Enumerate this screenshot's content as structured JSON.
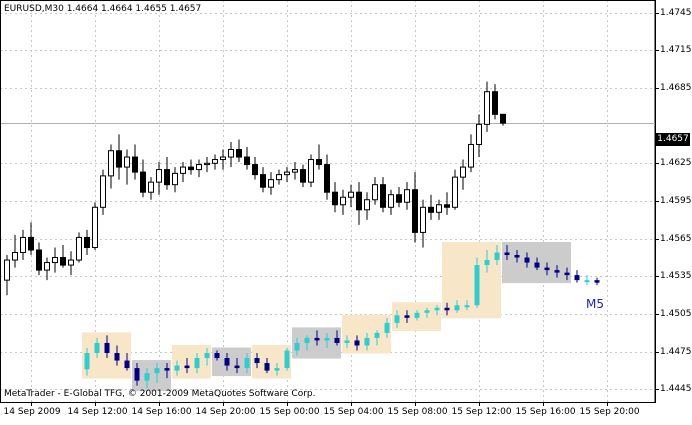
{
  "header": {
    "symbol_info": "EURUSD,M30  1.4664 1.4664 1.4655 1.4657"
  },
  "footer": {
    "copyright": "MetaTrader - E-Global TFG, © 2001-2009 MetaQuotes Software Corp."
  },
  "overlay": {
    "m5_label": "M5"
  },
  "price_axis": {
    "current_price": "1.4657",
    "ticks": [
      {
        "label": "1.4745",
        "value": 1.4745
      },
      {
        "label": "1.4715",
        "value": 1.4715
      },
      {
        "label": "1.4685",
        "value": 1.4685
      },
      {
        "label": "1.4625",
        "value": 1.4625
      },
      {
        "label": "1.4595",
        "value": 1.4595
      },
      {
        "label": "1.4565",
        "value": 1.4565
      },
      {
        "label": "1.4535",
        "value": 1.4535
      },
      {
        "label": "1.4505",
        "value": 1.4505
      },
      {
        "label": "1.4475",
        "value": 1.4475
      },
      {
        "label": "1.4445",
        "value": 1.4445
      }
    ]
  },
  "time_axis": {
    "ticks": [
      "14 Sep 2009",
      "14 Sep 12:00",
      "14 Sep 16:00",
      "14 Sep 20:00",
      "15 Sep 00:00",
      "15 Sep 04:00",
      "15 Sep 08:00",
      "15 Sep 12:00",
      "15 Sep 16:00",
      "15 Sep 20:00"
    ]
  },
  "colors": {
    "bull_body": "#ffffff",
    "bear_body": "#000000",
    "grid": "#c8c8c8",
    "m5_bull": "#33cccc",
    "m5_bear": "#000080",
    "zone_up": "#f8e6c8",
    "zone_down": "#cccccc",
    "current_line": "#b0b0b0"
  },
  "chart_data": {
    "type": "candlestick",
    "main_series": [
      [
        1.4532,
        1.4552,
        1.452,
        1.4548
      ],
      [
        1.4548,
        1.4568,
        1.4542,
        1.4554
      ],
      [
        1.4554,
        1.4572,
        1.4548,
        1.4566
      ],
      [
        1.4566,
        1.4578,
        1.4552,
        1.4556
      ],
      [
        1.4556,
        1.4562,
        1.4536,
        1.454
      ],
      [
        1.454,
        1.455,
        1.4532,
        1.4546
      ],
      [
        1.4546,
        1.4558,
        1.4538,
        1.455
      ],
      [
        1.455,
        1.456,
        1.4542,
        1.4544
      ],
      [
        1.4544,
        1.4555,
        1.4536,
        1.4548
      ],
      [
        1.4548,
        1.457,
        1.4546,
        1.4566
      ],
      [
        1.4566,
        1.4572,
        1.4552,
        1.4558
      ],
      [
        1.4558,
        1.4594,
        1.4556,
        1.459
      ],
      [
        1.459,
        1.462,
        1.4584,
        1.4615
      ],
      [
        1.4615,
        1.464,
        1.4605,
        1.4635
      ],
      [
        1.4635,
        1.4648,
        1.4612,
        1.4622
      ],
      [
        1.4622,
        1.4636,
        1.4608,
        1.463
      ],
      [
        1.463,
        1.464,
        1.4612,
        1.4618
      ],
      [
        1.4618,
        1.4628,
        1.4598,
        1.4602
      ],
      [
        1.4602,
        1.4614,
        1.4596,
        1.461
      ],
      [
        1.461,
        1.4626,
        1.46,
        1.462
      ],
      [
        1.462,
        1.463,
        1.4604,
        1.4608
      ],
      [
        1.4608,
        1.4622,
        1.4602,
        1.4617
      ],
      [
        1.4617,
        1.4626,
        1.461,
        1.4622
      ],
      [
        1.4622,
        1.4628,
        1.4616,
        1.462
      ],
      [
        1.462,
        1.4628,
        1.4614,
        1.4624
      ],
      [
        1.4624,
        1.463,
        1.4618,
        1.4625
      ],
      [
        1.4625,
        1.4632,
        1.462,
        1.4628
      ],
      [
        1.4628,
        1.4636,
        1.462,
        1.463
      ],
      [
        1.463,
        1.4642,
        1.4622,
        1.4636
      ],
      [
        1.4636,
        1.4644,
        1.4626,
        1.463
      ],
      [
        1.463,
        1.4638,
        1.462,
        1.4624
      ],
      [
        1.4624,
        1.463,
        1.4612,
        1.4616
      ],
      [
        1.4616,
        1.4622,
        1.4602,
        1.4606
      ],
      [
        1.4606,
        1.4618,
        1.46,
        1.4612
      ],
      [
        1.4612,
        1.462,
        1.4608,
        1.4616
      ],
      [
        1.4616,
        1.4622,
        1.461,
        1.4618
      ],
      [
        1.4618,
        1.4626,
        1.4612,
        1.462
      ],
      [
        1.462,
        1.4624,
        1.4606,
        1.461
      ],
      [
        1.461,
        1.4632,
        1.4606,
        1.4628
      ],
      [
        1.4628,
        1.464,
        1.462,
        1.4624
      ],
      [
        1.4624,
        1.4632,
        1.4596,
        1.4602
      ],
      [
        1.4602,
        1.461,
        1.4586,
        1.4592
      ],
      [
        1.4592,
        1.4604,
        1.4584,
        1.4598
      ],
      [
        1.4598,
        1.4608,
        1.459,
        1.4602
      ],
      [
        1.4602,
        1.461,
        1.4576,
        1.4588
      ],
      [
        1.4588,
        1.4602,
        1.458,
        1.4596
      ],
      [
        1.4596,
        1.4614,
        1.4592,
        1.4608
      ],
      [
        1.4608,
        1.4614,
        1.4586,
        1.459
      ],
      [
        1.459,
        1.4604,
        1.4584,
        1.46
      ],
      [
        1.46,
        1.4606,
        1.459,
        1.4594
      ],
      [
        1.4594,
        1.461,
        1.4588,
        1.4604
      ],
      [
        1.4604,
        1.4618,
        1.4562,
        1.457
      ],
      [
        1.457,
        1.4596,
        1.4558,
        1.459
      ],
      [
        1.459,
        1.46,
        1.458,
        1.4586
      ],
      [
        1.4586,
        1.4596,
        1.458,
        1.4592
      ],
      [
        1.4592,
        1.4602,
        1.4584,
        1.459
      ],
      [
        1.459,
        1.462,
        1.4588,
        1.4614
      ],
      [
        1.4614,
        1.4628,
        1.4604,
        1.4622
      ],
      [
        1.4622,
        1.4648,
        1.4618,
        1.464
      ],
      [
        1.464,
        1.4664,
        1.463,
        1.4656
      ],
      [
        1.4656,
        1.469,
        1.465,
        1.4682
      ],
      [
        1.4682,
        1.4688,
        1.466,
        1.4664
      ],
      [
        1.4664,
        1.4664,
        1.4655,
        1.4657
      ]
    ],
    "m5_series": [
      [
        1.4461,
        1.4478,
        1.4456,
        1.4474
      ],
      [
        1.4474,
        1.4486,
        1.447,
        1.4482
      ],
      [
        1.4482,
        1.4488,
        1.447,
        1.4474
      ],
      [
        1.4474,
        1.448,
        1.4464,
        1.4468
      ],
      [
        1.4468,
        1.4474,
        1.446,
        1.4462
      ],
      [
        1.4462,
        1.4466,
        1.4448,
        1.4452
      ],
      [
        1.4452,
        1.4462,
        1.4446,
        1.4458
      ],
      [
        1.4458,
        1.4466,
        1.445,
        1.4462
      ],
      [
        1.4462,
        1.4466,
        1.4454,
        1.446
      ],
      [
        1.446,
        1.4468,
        1.4456,
        1.4464
      ],
      [
        1.4464,
        1.447,
        1.4458,
        1.4462
      ],
      [
        1.4462,
        1.4474,
        1.4458,
        1.447
      ],
      [
        1.447,
        1.4478,
        1.4464,
        1.4474
      ],
      [
        1.4474,
        1.4476,
        1.4468,
        1.447
      ],
      [
        1.447,
        1.4474,
        1.446,
        1.4464
      ],
      [
        1.4464,
        1.447,
        1.4458,
        1.4462
      ],
      [
        1.4462,
        1.4474,
        1.4458,
        1.447
      ],
      [
        1.447,
        1.4474,
        1.4462,
        1.4466
      ],
      [
        1.4466,
        1.447,
        1.4458,
        1.446
      ],
      [
        1.446,
        1.4466,
        1.4456,
        1.4462
      ],
      [
        1.4462,
        1.4478,
        1.446,
        1.4476
      ],
      [
        1.4476,
        1.4486,
        1.4472,
        1.4482
      ],
      [
        1.4482,
        1.4488,
        1.4476,
        1.4486
      ],
      [
        1.4486,
        1.4492,
        1.448,
        1.4484
      ],
      [
        1.4484,
        1.449,
        1.4478,
        1.4486
      ],
      [
        1.4486,
        1.4492,
        1.448,
        1.4482
      ],
      [
        1.4482,
        1.4488,
        1.4478,
        1.4484
      ],
      [
        1.4484,
        1.4488,
        1.4476,
        1.448
      ],
      [
        1.448,
        1.449,
        1.4476,
        1.4486
      ],
      [
        1.4486,
        1.4492,
        1.448,
        1.449
      ],
      [
        1.449,
        1.4502,
        1.4486,
        1.4498
      ],
      [
        1.4498,
        1.4508,
        1.4494,
        1.4504
      ],
      [
        1.4504,
        1.4508,
        1.4498,
        1.4502
      ],
      [
        1.4502,
        1.4508,
        1.45,
        1.4506
      ],
      [
        1.4506,
        1.451,
        1.4502,
        1.4508
      ],
      [
        1.4508,
        1.4512,
        1.4504,
        1.451
      ],
      [
        1.451,
        1.4514,
        1.4504,
        1.4508
      ],
      [
        1.4508,
        1.4516,
        1.4506,
        1.4512
      ],
      [
        1.4512,
        1.4516,
        1.4508,
        1.4512
      ],
      [
        1.4512,
        1.455,
        1.451,
        1.4544
      ],
      [
        1.4544,
        1.4556,
        1.4538,
        1.4548
      ],
      [
        1.4548,
        1.456,
        1.4544,
        1.4554
      ],
      [
        1.4554,
        1.456,
        1.4548,
        1.4552
      ],
      [
        1.4552,
        1.4556,
        1.4546,
        1.455
      ],
      [
        1.455,
        1.4554,
        1.4542,
        1.4546
      ],
      [
        1.4546,
        1.455,
        1.454,
        1.4542
      ],
      [
        1.4542,
        1.4546,
        1.4536,
        1.454
      ],
      [
        1.454,
        1.4544,
        1.4534,
        1.4538
      ],
      [
        1.4538,
        1.4542,
        1.4532,
        1.4536
      ],
      [
        1.4536,
        1.454,
        1.453,
        1.4532
      ],
      [
        1.4532,
        1.4536,
        1.4528,
        1.4532
      ],
      [
        1.4532,
        1.4534,
        1.4528,
        1.453
      ]
    ],
    "m5_zones": [
      {
        "start": 0,
        "end": 4,
        "color": "up"
      },
      {
        "start": 5,
        "end": 8,
        "color": "down"
      },
      {
        "start": 9,
        "end": 12,
        "color": "up"
      },
      {
        "start": 13,
        "end": 16,
        "color": "down"
      },
      {
        "start": 17,
        "end": 20,
        "color": "up"
      },
      {
        "start": 21,
        "end": 25,
        "color": "down"
      },
      {
        "start": 26,
        "end": 30,
        "color": "up"
      },
      {
        "start": 31,
        "end": 35,
        "color": "up"
      },
      {
        "start": 36,
        "end": 41,
        "color": "up"
      },
      {
        "start": 42,
        "end": 48,
        "color": "down"
      }
    ]
  }
}
